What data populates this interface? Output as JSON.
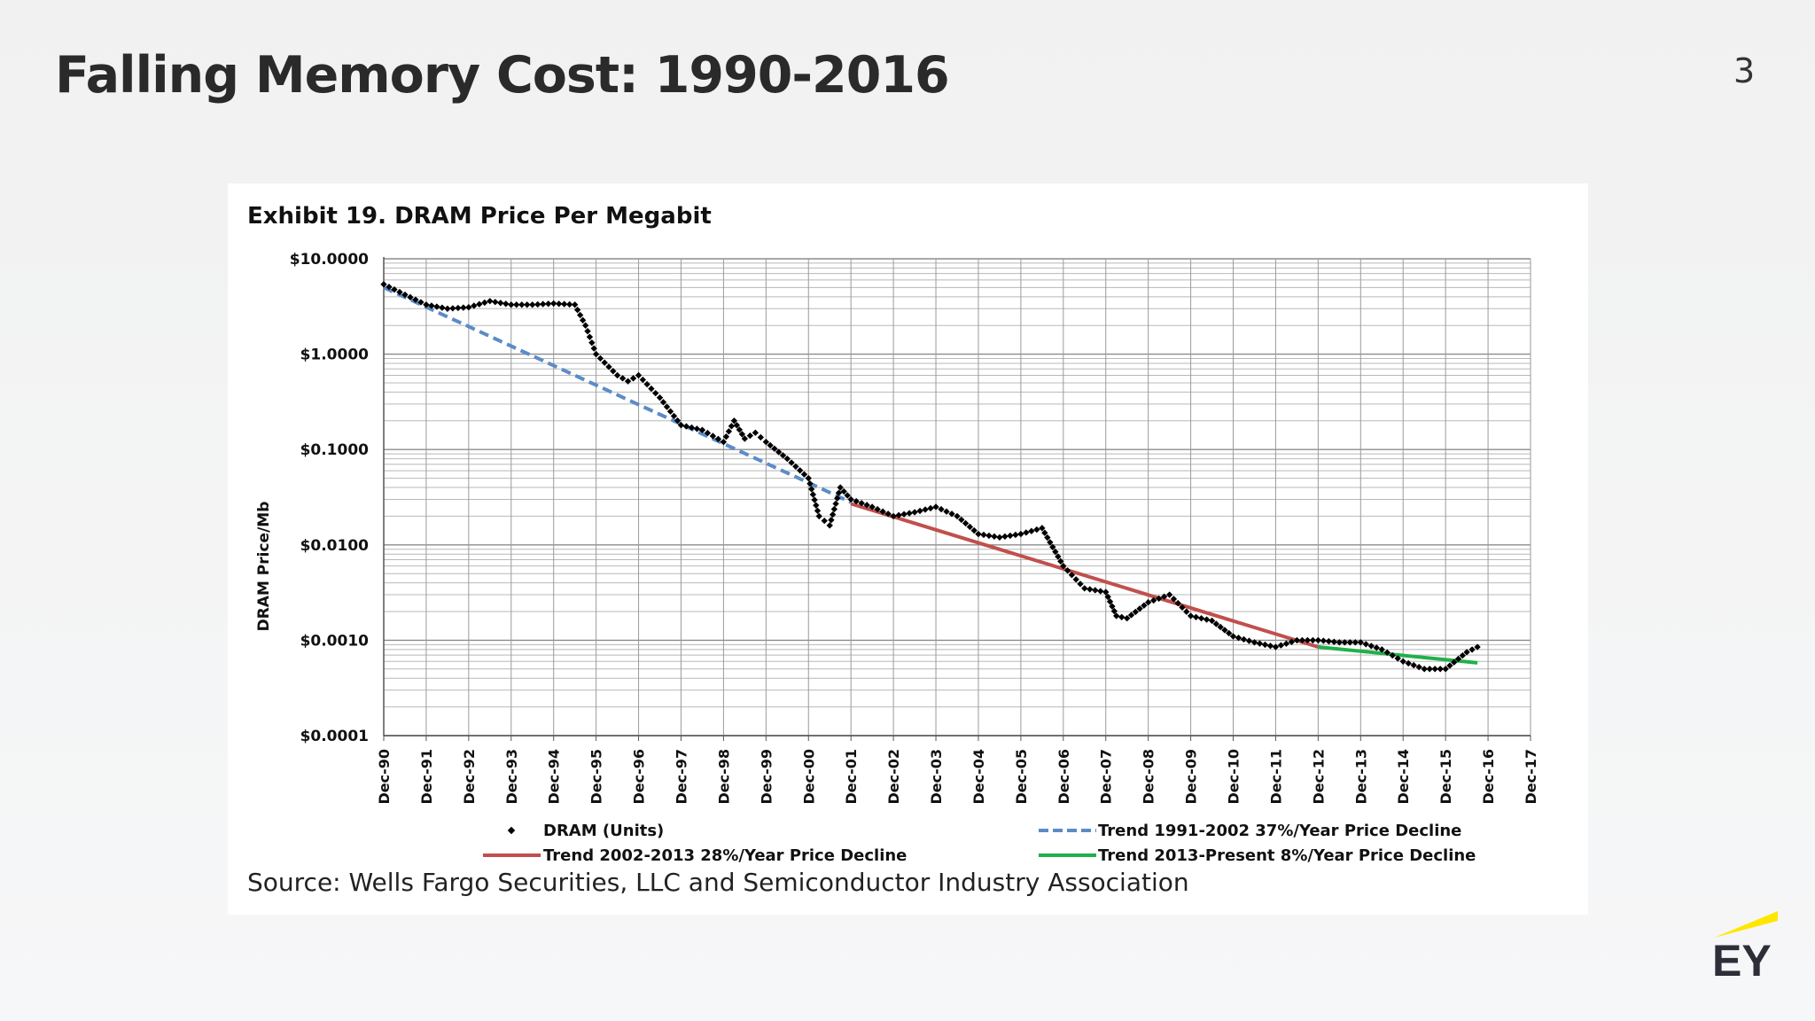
{
  "slide": {
    "title": "Falling Memory Cost: 1990-2016",
    "page_number": "3",
    "logo_text": "EY",
    "source": "Source: Wells Fargo Securities, LLC and Semiconductor Industry Association"
  },
  "colors": {
    "dram": "#000000",
    "trend_1991_2002": "#5b8cc8",
    "trend_2002_2013": "#c0504d",
    "trend_2013_present": "#20b04b",
    "logo_accent": "#ffe600"
  },
  "chart_data": {
    "type": "line",
    "title": "Exhibit 19. DRAM Price Per Megabit",
    "ylabel": "DRAM Price/Mb",
    "xlabel": "",
    "y_scale": "log",
    "ylim": [
      0.0001,
      10
    ],
    "y_ticks": [
      "$10.0000",
      "$1.0000",
      "$0.1000",
      "$0.0100",
      "$0.0010",
      "$0.0001"
    ],
    "x_ticks": [
      "Dec-90",
      "Dec-91",
      "Dec-92",
      "Dec-93",
      "Dec-94",
      "Dec-95",
      "Dec-96",
      "Dec-97",
      "Dec-98",
      "Dec-99",
      "Dec-00",
      "Dec-01",
      "Dec-02",
      "Dec-03",
      "Dec-04",
      "Dec-05",
      "Dec-06",
      "Dec-07",
      "Dec-08",
      "Dec-09",
      "Dec-10",
      "Dec-11",
      "Dec-12",
      "Dec-13",
      "Dec-14",
      "Dec-15",
      "Dec-16",
      "Dec-17"
    ],
    "grid": true,
    "legend_position": "bottom",
    "series": [
      {
        "name": "DRAM (Units)",
        "style": "markers",
        "points": [
          [
            "Dec-90",
            5.4
          ],
          [
            "Jun-91",
            4.2
          ],
          [
            "Dec-91",
            3.3
          ],
          [
            "Jun-92",
            3.0
          ],
          [
            "Dec-92",
            3.1
          ],
          [
            "Jun-93",
            3.6
          ],
          [
            "Dec-93",
            3.3
          ],
          [
            "Jun-94",
            3.3
          ],
          [
            "Dec-94",
            3.4
          ],
          [
            "Jun-95",
            3.3
          ],
          [
            "Sep-95",
            2.0
          ],
          [
            "Dec-95",
            1.0
          ],
          [
            "Jun-96",
            0.6
          ],
          [
            "Sep-96",
            0.52
          ],
          [
            "Dec-96",
            0.6
          ],
          [
            "Jun-97",
            0.35
          ],
          [
            "Dec-97",
            0.18
          ],
          [
            "Jun-98",
            0.16
          ],
          [
            "Dec-98",
            0.12
          ],
          [
            "Mar-99",
            0.2
          ],
          [
            "Jun-99",
            0.13
          ],
          [
            "Sep-99",
            0.15
          ],
          [
            "Dec-99",
            0.12
          ],
          [
            "Jun-00",
            0.08
          ],
          [
            "Dec-00",
            0.05
          ],
          [
            "Mar-01",
            0.02
          ],
          [
            "Jun-01",
            0.016
          ],
          [
            "Sep-01",
            0.04
          ],
          [
            "Dec-01",
            0.03
          ],
          [
            "Jun-02",
            0.025
          ],
          [
            "Dec-02",
            0.02
          ],
          [
            "Jun-03",
            0.022
          ],
          [
            "Dec-03",
            0.025
          ],
          [
            "Jun-04",
            0.02
          ],
          [
            "Dec-04",
            0.013
          ],
          [
            "Jun-05",
            0.012
          ],
          [
            "Dec-05",
            0.013
          ],
          [
            "Jun-06",
            0.015
          ],
          [
            "Dec-06",
            0.006
          ],
          [
            "Jun-07",
            0.0035
          ],
          [
            "Dec-07",
            0.0032
          ],
          [
            "Mar-08",
            0.0018
          ],
          [
            "Jun-08",
            0.0017
          ],
          [
            "Dec-08",
            0.0025
          ],
          [
            "Jun-09",
            0.003
          ],
          [
            "Dec-09",
            0.0018
          ],
          [
            "Jun-10",
            0.0016
          ],
          [
            "Dec-10",
            0.0011
          ],
          [
            "Jun-11",
            0.00095
          ],
          [
            "Dec-11",
            0.00085
          ],
          [
            "Jun-12",
            0.001
          ],
          [
            "Dec-12",
            0.001
          ],
          [
            "Jun-13",
            0.00095
          ],
          [
            "Dec-13",
            0.00095
          ],
          [
            "Jun-14",
            0.0008
          ],
          [
            "Dec-14",
            0.0006
          ],
          [
            "Jun-15",
            0.0005
          ],
          [
            "Dec-15",
            0.0005
          ],
          [
            "Jun-16",
            0.00075
          ],
          [
            "Sep-16",
            0.00085
          ]
        ]
      },
      {
        "name": "Trend 1991-2002 37%/Year Price Decline",
        "style": "dashed",
        "points": [
          [
            "Dec-90",
            5.0
          ],
          [
            "Dec-01",
            0.028
          ]
        ]
      },
      {
        "name": "Trend 2002-2013 28%/Year Price Decline",
        "style": "solid",
        "points": [
          [
            "Dec-01",
            0.027
          ],
          [
            "Dec-12",
            0.00085
          ]
        ]
      },
      {
        "name": "Trend 2013-Present 8%/Year Price Decline",
        "style": "solid",
        "points": [
          [
            "Dec-12",
            0.00085
          ],
          [
            "Sep-16",
            0.00058
          ]
        ]
      }
    ]
  }
}
